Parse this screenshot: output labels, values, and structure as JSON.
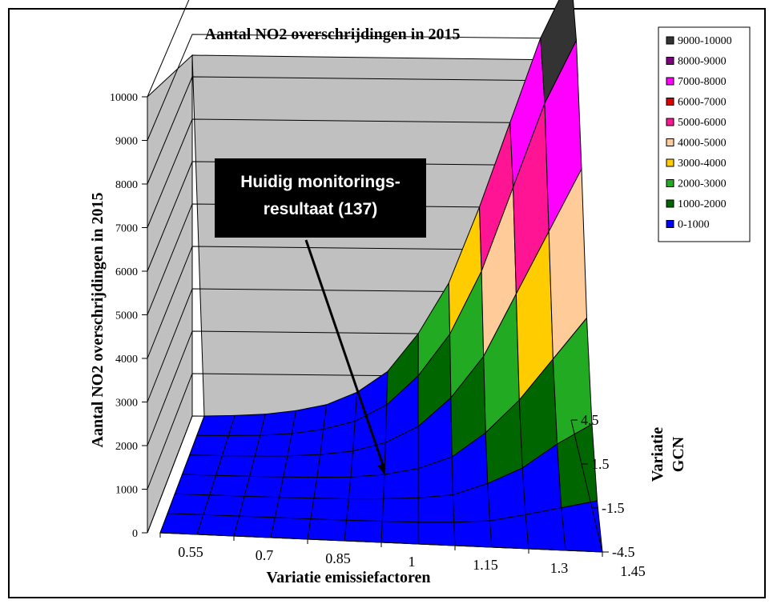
{
  "chart_data": {
    "type": "surface",
    "title": "Aantal NO2 overschrijdingen in 2015",
    "xlabel": "Variatie emissiefactoren",
    "zlabel": "Aantal NO2 overschrijdingen in 2015",
    "ylabel": [
      "Variatie",
      "GCN"
    ],
    "x": [
      "0.55",
      "0.7",
      "0.85",
      "1",
      "1.15",
      "1.3",
      "1.45"
    ],
    "x_values": [
      0.55,
      0.625,
      0.7,
      0.775,
      0.85,
      0.925,
      1.0,
      1.075,
      1.15,
      1.225,
      1.3,
      1.375,
      1.45
    ],
    "y_ticks": [
      "-4.5",
      "-1.5",
      "1.5",
      "4.5"
    ],
    "y_values": [
      -4.5,
      -3.0,
      -1.5,
      0.0,
      1.5,
      3.0,
      4.5
    ],
    "zlim": [
      0,
      10000
    ],
    "z_ticks": [
      "0",
      "1000",
      "2000",
      "3000",
      "4000",
      "5000",
      "6000",
      "7000",
      "8000",
      "9000",
      "10000"
    ],
    "values": [
      [
        0,
        0,
        0,
        0,
        0,
        0,
        0,
        0,
        0,
        0,
        0,
        0,
        0
      ],
      [
        0,
        0,
        0,
        0,
        0,
        0,
        10,
        20,
        50,
        120,
        300,
        500,
        700
      ],
      [
        0,
        0,
        0,
        0,
        10,
        20,
        50,
        100,
        200,
        500,
        900,
        1500,
        2000
      ],
      [
        0,
        0,
        0,
        10,
        20,
        50,
        137,
        300,
        600,
        1200,
        2000,
        3000,
        4000
      ],
      [
        0,
        0,
        10,
        30,
        80,
        180,
        400,
        800,
        1500,
        2500,
        4000,
        5500,
        7000
      ],
      [
        0,
        10,
        30,
        80,
        200,
        400,
        800,
        1500,
        2500,
        4000,
        6000,
        8000,
        9500
      ],
      [
        0,
        20,
        60,
        150,
        300,
        600,
        1100,
        2000,
        3200,
        5000,
        7000,
        9000,
        10500
      ]
    ],
    "legend": {
      "placement": "top-right",
      "entries": [
        {
          "label": "9000-10000",
          "color": "#333333"
        },
        {
          "label": "8000-9000",
          "color": "#800080"
        },
        {
          "label": "7000-8000",
          "color": "#ff00ff"
        },
        {
          "label": "6000-7000",
          "color": "#dd0000"
        },
        {
          "label": "5000-6000",
          "color": "#ff1493"
        },
        {
          "label": "4000-5000",
          "color": "#ffcc99"
        },
        {
          "label": "3000-4000",
          "color": "#ffcc00"
        },
        {
          "label": "2000-3000",
          "color": "#22aa22"
        },
        {
          "label": "1000-2000",
          "color": "#006600"
        },
        {
          "label": "0-1000",
          "color": "#0000ff"
        }
      ]
    },
    "annotation": {
      "lines": [
        "Huidig monitorings-",
        "resultaat (137)"
      ],
      "target": {
        "x": 1.0,
        "y": 0.0,
        "value": 137
      }
    }
  }
}
